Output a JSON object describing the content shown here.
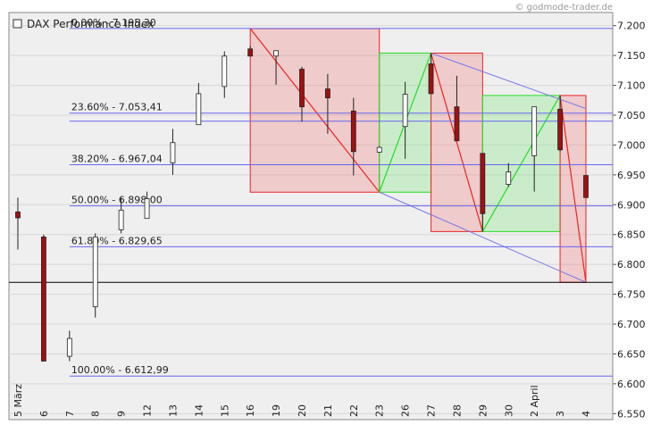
{
  "chart_data": {
    "type": "candlestick",
    "title": "DAX Performance Index",
    "watermark": "© godmode-trader.de",
    "categories": [
      "5 März",
      "6",
      "7",
      "8",
      "9",
      "12",
      "13",
      "14",
      "15",
      "16",
      "19",
      "20",
      "21",
      "22",
      "23",
      "26",
      "27",
      "28",
      "29",
      "30",
      "2 April",
      "3",
      "4"
    ],
    "open": [
      6888,
      6846,
      6646,
      6729,
      6858,
      6877,
      6970,
      7034,
      7098,
      7161,
      7149,
      7127,
      7094,
      7057,
      6988,
      7031,
      7136,
      7064,
      6986,
      6934,
      6982,
      7060,
      6949
    ],
    "high": [
      6912,
      6850,
      6689,
      6852,
      6912,
      6922,
      7027,
      7104,
      7157,
      7166,
      7158,
      7131,
      7119,
      7079,
      6998,
      7106,
      7154,
      7116,
      6986,
      6970,
      7064,
      7083,
      6949
    ],
    "low": [
      6825,
      6638,
      6638,
      6711,
      6852,
      6877,
      6950,
      7034,
      7079,
      7149,
      7101,
      7039,
      7019,
      6949,
      6988,
      6977,
      7086,
      7007,
      6855,
      6930,
      6922,
      6989,
      6912
    ],
    "close": [
      6878,
      6638,
      6676,
      6846,
      6891,
      6910,
      7004,
      7086,
      7149,
      7149,
      7158,
      7064,
      7079,
      6989,
      6996,
      7085,
      7086,
      7007,
      6885,
      6955,
      7064,
      6992,
      6912
    ],
    "up_color": "#ffffff",
    "down_color": "#a01010",
    "ylim": [
      6540,
      7222
    ],
    "yticks": [
      {
        "value": 6550,
        "label": "6.550"
      },
      {
        "value": 6600,
        "label": "6.600"
      },
      {
        "value": 6650,
        "label": "6.650"
      },
      {
        "value": 6700,
        "label": "6.700"
      },
      {
        "value": 6750,
        "label": "6.750"
      },
      {
        "value": 6800,
        "label": "6.800"
      },
      {
        "value": 6850,
        "label": "6.850"
      },
      {
        "value": 6900,
        "label": "6.900"
      },
      {
        "value": 6950,
        "label": "6.950"
      },
      {
        "value": 7000,
        "label": "7.000"
      },
      {
        "value": 7050,
        "label": "7.050"
      },
      {
        "value": 7100,
        "label": "7.100"
      },
      {
        "value": 7150,
        "label": "7.150"
      },
      {
        "value": 7200,
        "label": "7.200"
      }
    ],
    "grid": true,
    "fib_start": "7",
    "fib_color": "#6666ee",
    "fib_levels": [
      {
        "value": 7195.3,
        "label": "0.00% - 7.195,30"
      },
      {
        "value": 7053.41,
        "label": "23.60% - 7.053,41"
      },
      {
        "value": 7040
      },
      {
        "value": 6967.04,
        "label": "38.20% - 6.967,04"
      },
      {
        "value": 6898.0,
        "label": "50.00% - 6.898,00"
      },
      {
        "value": 6829.65,
        "label": "61.80% - 6.829,65"
      },
      {
        "value": 6612.99,
        "label": "100.00% - 6.612,99"
      }
    ],
    "reference_line": 6770,
    "pivots": [
      {
        "x": "16",
        "value": 7195
      },
      {
        "x": "23",
        "value": 6921
      },
      {
        "x": "27",
        "value": 7154
      },
      {
        "x": "29",
        "value": 6855
      },
      {
        "x": "3",
        "value": 7083
      },
      {
        "x": "4",
        "value": 6770
      }
    ],
    "trendlines": [
      {
        "x1": "27",
        "y1": 7154,
        "x2": "4",
        "y2": 7061
      },
      {
        "x1": "23",
        "y1": 6921,
        "x2": "4",
        "y2": 6770
      }
    ]
  }
}
